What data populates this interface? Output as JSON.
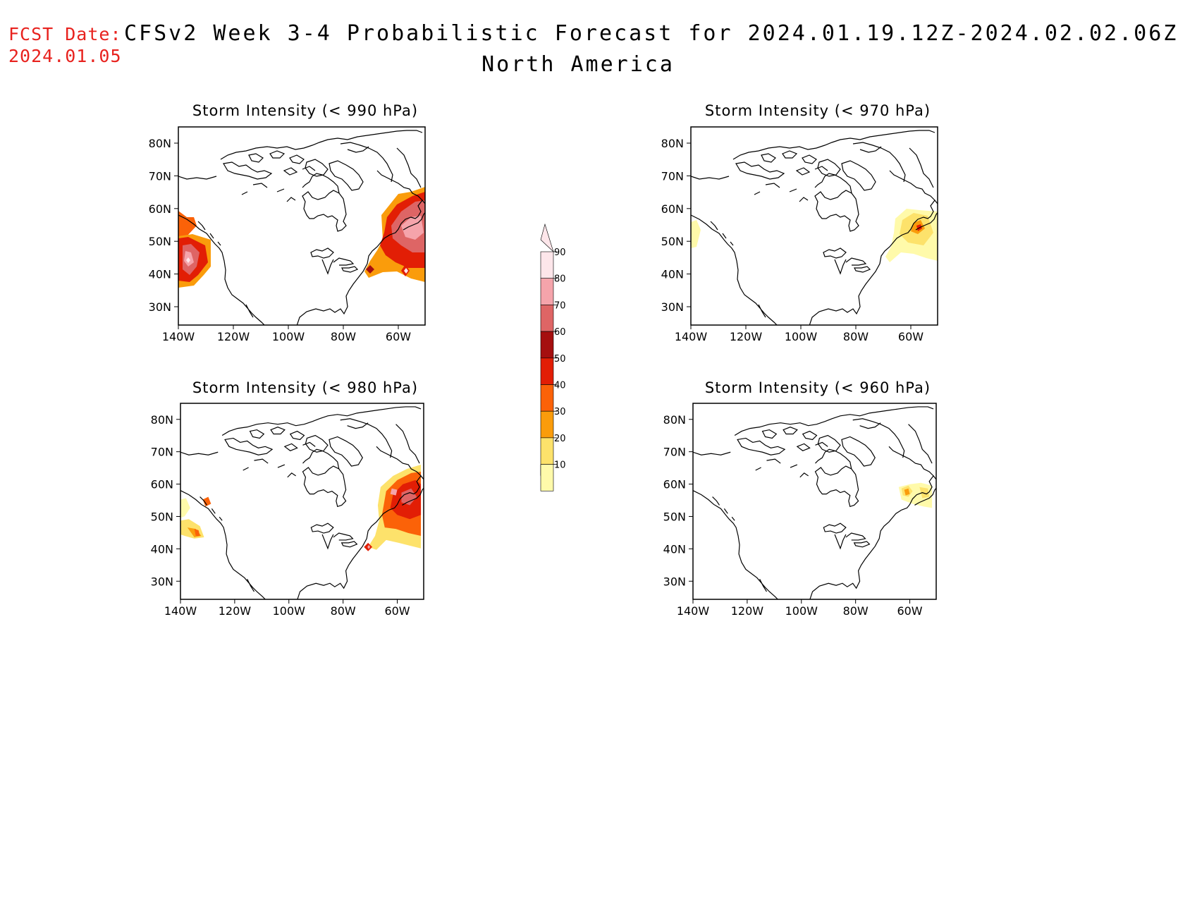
{
  "header": {
    "fcst_label": "FCST Date:",
    "fcst_date": "2024.01.05",
    "title": "CFSv2 Week 3-4 Probabilistic Forecast for 2024.01.19.12Z-2024.02.02.06Z",
    "subtitle": "North America"
  },
  "panels": [
    {
      "title": "Storm Intensity (< 990 hPa)"
    },
    {
      "title": "Storm Intensity (< 970 hPa)"
    },
    {
      "title": "Storm Intensity (< 980 hPa)"
    },
    {
      "title": "Storm Intensity (< 960 hPa)"
    }
  ],
  "lat_ticks": [
    "80N",
    "70N",
    "60N",
    "50N",
    "40N",
    "30N"
  ],
  "lon_ticks": [
    "140W",
    "120W",
    "100W",
    "80W",
    "60W"
  ],
  "colorbar": {
    "labels": [
      "90",
      "80",
      "70",
      "60",
      "50",
      "40",
      "30",
      "20",
      "10"
    ],
    "colors": [
      "#fde6ea",
      "#f5a4ab",
      "#de6565",
      "#a50f0f",
      "#e21e05",
      "#fb6208",
      "#fa9c0b",
      "#fde26b",
      "#fffaaa"
    ]
  }
}
